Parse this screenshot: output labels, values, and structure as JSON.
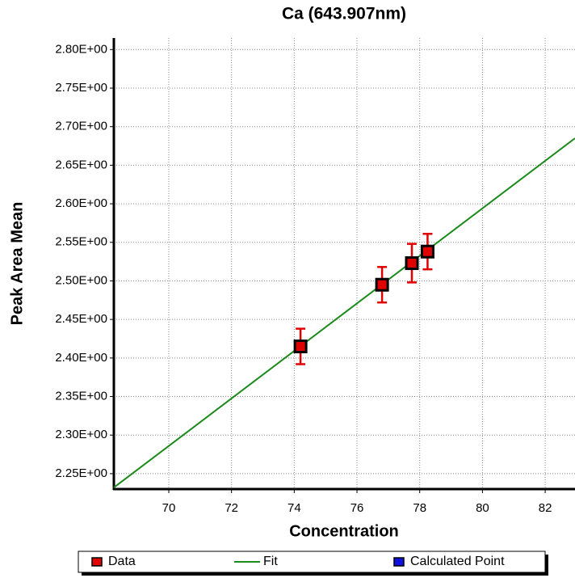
{
  "chart_data": {
    "type": "scatter",
    "title": "Ca (643.907nm)",
    "title_color": "#1010e0",
    "x_label": "Concentration",
    "y_label": "Peak Area Mean",
    "xlim": [
      68.25,
      82.95
    ],
    "ylim": [
      2.23,
      2.815
    ],
    "xticks": [
      70,
      72,
      74,
      76,
      78,
      80,
      82
    ],
    "yticks": [
      {
        "value": 2.25,
        "label": "2.25E+00"
      },
      {
        "value": 2.3,
        "label": "2.30E+00"
      },
      {
        "value": 2.35,
        "label": "2.35E+00"
      },
      {
        "value": 2.4,
        "label": "2.40E+00"
      },
      {
        "value": 2.45,
        "label": "2.45E+00"
      },
      {
        "value": 2.5,
        "label": "2.50E+00"
      },
      {
        "value": 2.55,
        "label": "2.55E+00"
      },
      {
        "value": 2.6,
        "label": "2.60E+00"
      },
      {
        "value": 2.65,
        "label": "2.65E+00"
      },
      {
        "value": 2.7,
        "label": "2.70E+00"
      },
      {
        "value": 2.75,
        "label": "2.75E+00"
      },
      {
        "value": 2.8,
        "label": "2.80E+00"
      }
    ],
    "grid": true,
    "legend": "bottom",
    "series": [
      {
        "name": "Data",
        "color": "#e00000",
        "x": [
          74.2,
          76.8,
          77.75,
          78.25
        ],
        "values": [
          2.415,
          2.495,
          2.523,
          2.538
        ],
        "errors": [
          0.023,
          0.023,
          0.025,
          0.023
        ],
        "error_color": "#e00000"
      },
      {
        "name": "Fit",
        "color": "#1a8a1a",
        "x": [
          68.25,
          82.95
        ],
        "values": [
          2.232,
          2.685
        ]
      },
      {
        "name": "Calculated Point",
        "color": "#1010e0",
        "x": [],
        "values": []
      }
    ]
  }
}
